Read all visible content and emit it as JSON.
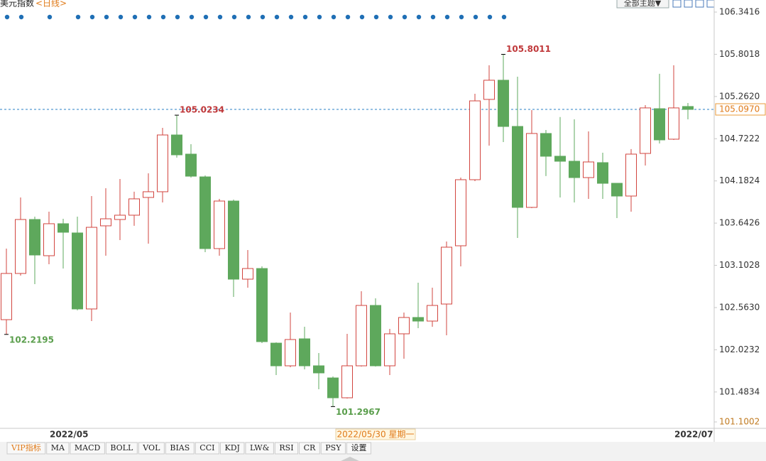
{
  "chart_data": {
    "type": "candlestick",
    "title": "美元指数",
    "title_suffix": "<日线>",
    "theme_button": "全部主题▼",
    "categories": [
      null,
      null,
      null,
      "2022/05",
      null,
      null,
      null,
      null,
      null,
      null,
      null,
      null,
      null,
      null,
      null,
      null,
      null,
      null,
      null,
      null,
      null,
      null,
      null,
      null,
      null,
      null,
      "2022/05/30 星期一",
      null,
      null,
      null,
      null,
      null,
      null,
      null,
      null,
      null,
      null,
      null,
      null,
      null,
      null,
      null,
      null,
      null,
      null,
      null,
      null,
      "2022/07",
      null
    ],
    "series": [
      {
        "name": "open",
        "values": [
          102.408,
          102.999,
          103.689,
          103.226,
          103.635,
          103.517,
          102.545,
          103.608,
          103.689,
          103.744,
          103.971,
          104.044,
          104.77,
          104.525,
          104.234,
          103.317,
          103.925,
          102.926,
          103.062,
          102.108,
          101.818,
          102.163,
          101.818,
          101.663,
          101.409,
          101.818,
          102.59,
          101.818,
          102.227,
          102.436,
          102.39,
          102.608,
          103.353,
          104.198,
          105.225,
          105.47,
          104.879,
          103.844,
          104.789,
          104.498,
          104.434,
          104.225,
          104.416,
          104.152,
          103.989,
          104.534,
          105.106,
          104.716,
          105.134
        ]
      },
      {
        "name": "high",
        "values": [
          103.317,
          103.971,
          103.726,
          103.789,
          103.698,
          103.726,
          103.989,
          104.089,
          104.207,
          104.044,
          104.28,
          104.861,
          105.0234,
          104.652,
          104.252,
          103.953,
          103.944,
          103.298,
          103.09,
          102.118,
          102.499,
          102.318,
          101.981,
          101.682,
          102.227,
          102.772,
          102.681,
          102.29,
          102.499,
          102.881,
          102.817,
          103.408,
          104.225,
          105.297,
          105.661,
          105.8011,
          105.515,
          105.088,
          104.834,
          105.0,
          104.97,
          104.816,
          104.543,
          104.152,
          104.589,
          105.152,
          105.552,
          105.661,
          105.179
        ]
      },
      {
        "name": "low",
        "values": [
          102.2195,
          102.972,
          102.863,
          103.117,
          103.062,
          102.527,
          102.39,
          103.226,
          103.426,
          103.608,
          103.38,
          103.907,
          104.48,
          104.225,
          103.271,
          103.226,
          102.699,
          102.817,
          102.108,
          101.7,
          101.8,
          101.772,
          101.518,
          101.2967,
          101.4,
          101.809,
          101.809,
          101.7,
          101.909,
          102.299,
          102.318,
          102.208,
          103.09,
          104.18,
          104.634,
          104.679,
          103.453,
          103.835,
          104.244,
          103.971,
          103.907,
          103.953,
          103.953,
          103.707,
          103.789,
          104.38,
          104.661,
          104.707,
          104.97
        ]
      },
      {
        "name": "close",
        "values": [
          102.999,
          103.689,
          103.235,
          103.635,
          103.526,
          102.545,
          103.589,
          103.698,
          103.744,
          103.953,
          104.044,
          104.77,
          104.516,
          104.243,
          103.317,
          103.925,
          102.926,
          103.062,
          102.127,
          101.818,
          102.154,
          101.818,
          101.727,
          101.409,
          101.818,
          102.59,
          101.818,
          102.227,
          102.436,
          102.39,
          102.59,
          103.335,
          104.198,
          105.206,
          105.47,
          104.879,
          103.844,
          104.789,
          104.498,
          104.434,
          104.225,
          104.425,
          104.152,
          103.989,
          104.525,
          105.116,
          104.707,
          105.116,
          105.097
        ]
      }
    ],
    "up_color": "#d2453f",
    "down_color": "#5ea85c",
    "ylim": [
      101.1002,
      106.3416
    ],
    "yticks": [
      106.3416,
      105.8018,
      {
        "value": 105.262,
        "label": "105.2620"
      },
      104.7222,
      104.1824,
      103.6426,
      103.1028,
      {
        "value": 102.563,
        "label": "102.5630"
      },
      102.0232,
      101.4834,
      101.1002
    ],
    "current_price": {
      "value": 105.097,
      "label": "105.0970"
    },
    "toolbar_tabs": [
      "VIP指标",
      "MA",
      "MACD",
      "BOLL",
      "VOL",
      "BIAS",
      "CCI",
      "KDJ",
      "LW&",
      "RSI",
      "CR",
      "PSY",
      "设置"
    ]
  }
}
